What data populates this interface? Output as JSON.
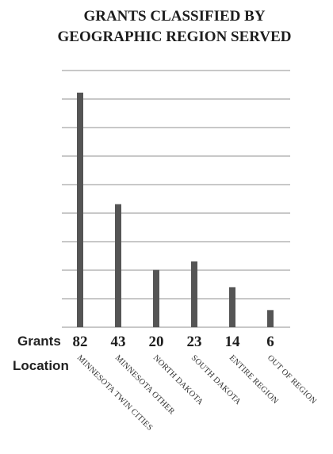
{
  "chart_data": {
    "type": "bar",
    "title_lines": [
      "GRANTS CLASSIFIED BY",
      "GEOGRAPHIC REGION SERVED"
    ],
    "row_labels": {
      "values": "Grants",
      "categories": "Location"
    },
    "categories": [
      "MINNESOTA TWIN CITIES",
      "MINNESOTA OTHER",
      "NORTH DAKOTA",
      "SOUTH DAKOTA",
      "ENTIRE REGION",
      "OUT OF REGION"
    ],
    "values": [
      82,
      43,
      20,
      23,
      14,
      6
    ],
    "ylim": [
      0,
      90
    ],
    "grid": true,
    "bar_color": "#555555",
    "grid_color": "#c8c8c8"
  }
}
